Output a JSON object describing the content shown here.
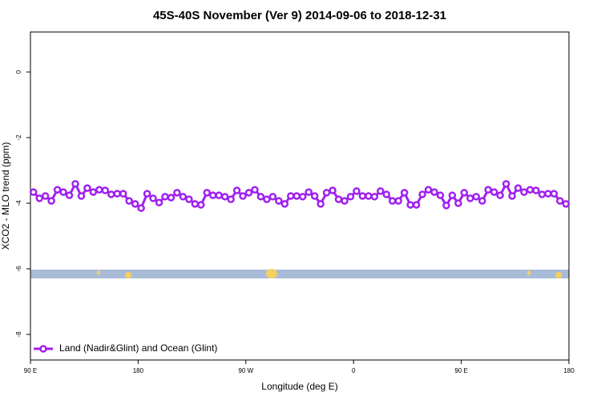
{
  "chart_data": {
    "type": "line",
    "title": "45S-40S November (Ver 9)   2014-09-06 to 2018-12-31",
    "xlabel": "Longitude (deg E)",
    "ylabel": "XCO2 - MLO trend (ppm)",
    "x": [
      92.5,
      97.5,
      102.5,
      107.5,
      112.5,
      117.5,
      122.5,
      127.5,
      132.5,
      137.5,
      142.5,
      147.5,
      152.5,
      157.5,
      162.5,
      167.5,
      172.5,
      177.5,
      182.5,
      187.5,
      192.5,
      197.5,
      202.5,
      207.5,
      212.5,
      217.5,
      222.5,
      227.5,
      232.5,
      237.5,
      242.5,
      247.5,
      252.5,
      257.5,
      262.5,
      267.5,
      272.5,
      277.5,
      282.5,
      287.5,
      292.5,
      297.5,
      302.5,
      307.5,
      312.5,
      317.5,
      322.5,
      327.5,
      332.5,
      337.5,
      342.5,
      347.5,
      352.5,
      357.5,
      362.5,
      367.5,
      372.5,
      377.5,
      382.5,
      387.5,
      392.5,
      397.5,
      402.5,
      407.5,
      412.5,
      417.5,
      422.5,
      427.5,
      432.5,
      437.5,
      442.5,
      447.5,
      452.5,
      457.5,
      462.5,
      467.5,
      472.5,
      477.5,
      482.5,
      487.5,
      492.5,
      497.5,
      502.5,
      507.5,
      512.5,
      517.5,
      522.5,
      527.5,
      532.5,
      537.5
    ],
    "series": [
      {
        "name": "Land (Nadir&Glint) and Ocean (Glint)",
        "color": "#a020f0",
        "values": [
          -3.66,
          -3.85,
          -3.78,
          -3.93,
          -3.59,
          -3.66,
          -3.76,
          -3.41,
          -3.78,
          -3.54,
          -3.66,
          -3.59,
          -3.61,
          -3.73,
          -3.71,
          -3.71,
          -3.93,
          -4.02,
          -4.15,
          -3.71,
          -3.85,
          -3.98,
          -3.8,
          -3.83,
          -3.68,
          -3.8,
          -3.88,
          -4.02,
          -4.05,
          -3.68,
          -3.76,
          -3.76,
          -3.8,
          -3.88,
          -3.61,
          -3.78,
          -3.68,
          -3.59,
          -3.8,
          -3.88,
          -3.8,
          -3.93,
          -4.02,
          -3.78,
          -3.78,
          -3.8,
          -3.66,
          -3.78,
          -4.02,
          -3.68,
          -3.61,
          -3.88,
          -3.93,
          -3.8,
          -3.63,
          -3.78,
          -3.78,
          -3.8,
          -3.63,
          -3.73,
          -3.93,
          -3.93,
          -3.68,
          -4.05,
          -4.05,
          -3.73,
          -3.59,
          -3.66,
          -3.76,
          -4.07,
          -3.76,
          -4.0,
          -3.68,
          -3.85,
          -3.8,
          -3.93,
          -3.59,
          -3.66,
          -3.76,
          -3.41,
          -3.78,
          -3.54,
          -3.66,
          -3.59,
          -3.61,
          -3.73,
          -3.71,
          -3.71,
          -3.93,
          -4.02
        ]
      }
    ],
    "xlim": [
      90,
      540
    ],
    "xticks": [
      {
        "value": 90,
        "label": "90 E"
      },
      {
        "value": 180,
        "label": "180"
      },
      {
        "value": 270,
        "label": "90 W"
      },
      {
        "value": 360,
        "label": "0"
      },
      {
        "value": 450,
        "label": "90 E"
      },
      {
        "value": 540,
        "label": "180"
      }
    ],
    "ylim": [
      -8.78,
      1.22
    ],
    "yticks": [
      0,
      -2,
      -4,
      -6,
      -8
    ],
    "legend": "bottom-left"
  }
}
